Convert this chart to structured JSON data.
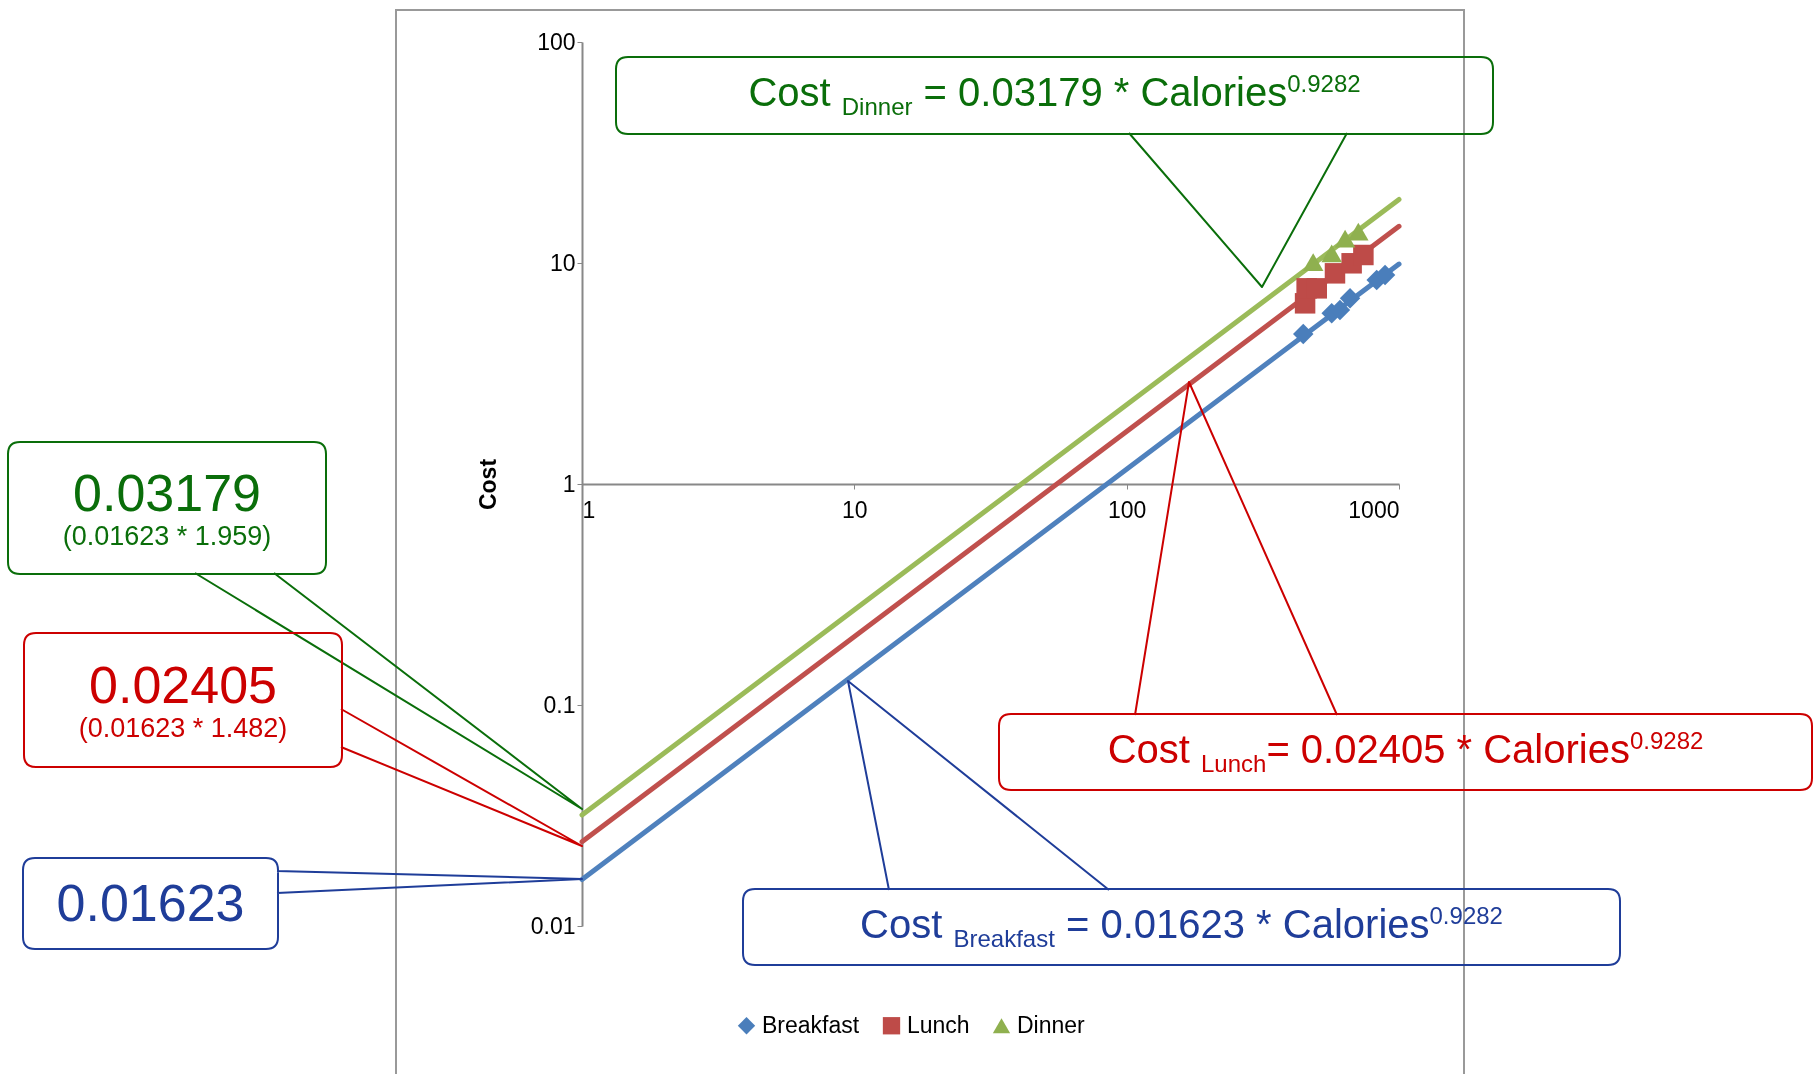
{
  "chart_data": {
    "type": "scatter",
    "ylabel": "Cost",
    "log": "xy",
    "legend": "bottom",
    "xlim": [
      1,
      1000
    ],
    "xticks": [
      1,
      10,
      100,
      1000
    ],
    "ylim": [
      0.01,
      100
    ],
    "yticks": [
      0.01,
      0.1,
      1,
      10,
      100
    ],
    "series": [
      {
        "name": "Breakfast",
        "marker": "diamond",
        "color": "#4a7ebb",
        "x": [
          445,
          566,
          607,
          661,
          828,
          889
        ],
        "values": [
          4.77,
          5.92,
          6.13,
          6.92,
          8.38,
          8.83
        ]
      },
      {
        "name": "Lunch",
        "marker": "square",
        "color": "#be4b48",
        "x": [
          452,
          458,
          499,
          582,
          670,
          740
        ],
        "values": [
          6.57,
          7.68,
          7.68,
          8.98,
          9.97,
          10.87
        ]
      },
      {
        "name": "Dinner",
        "marker": "triangle",
        "color": "#8fb04f",
        "x": [
          484,
          566,
          634,
          709
        ],
        "values": [
          10.1,
          11.06,
          12.9,
          13.86
        ]
      },
      {
        "type": "line",
        "marker": "none",
        "color": "#4f81bd",
        "x": [
          1,
          1000
        ],
        "values": [
          0.01623,
          9.89
        ]
      },
      {
        "type": "line",
        "marker": "none",
        "color": "#c0504d",
        "x": [
          1,
          1000
        ],
        "values": [
          0.02405,
          14.66
        ]
      },
      {
        "type": "line",
        "marker": "none",
        "color": "#9bbb59",
        "x": [
          1,
          1000
        ],
        "values": [
          0.03179,
          19.38
        ]
      }
    ],
    "annotations": [
      "Cost $_{Dinner}$ = 0.03179 * Calories$^{0.9282}$",
      "Cost $_{Lunch}$= 0.02405 * Calories$^{0.9282}$",
      "Cost $_{Breakfast}$ = 0.01623 * Calories$^{0.9282}$",
      "0.03179\n(0.01623 * 1.959)",
      "0.02405\n(0.01623 * 1.482)",
      "0.01623"
    ]
  }
}
